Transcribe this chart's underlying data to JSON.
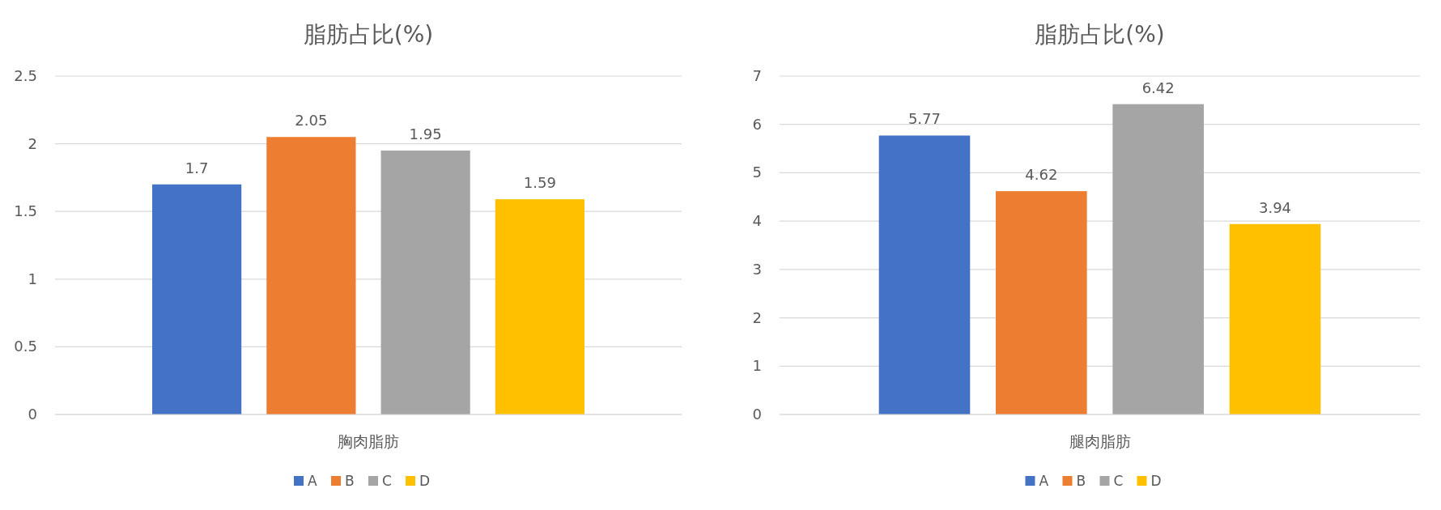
{
  "chart_data": [
    {
      "type": "bar",
      "title": "脂肪占比(%)",
      "categories": [
        "胸肉脂肪"
      ],
      "series": [
        {
          "name": "A",
          "color": "#4472c4",
          "values": [
            1.7
          ]
        },
        {
          "name": "B",
          "color": "#ed7d31",
          "values": [
            2.05
          ]
        },
        {
          "name": "C",
          "color": "#a5a5a5",
          "values": [
            1.95
          ]
        },
        {
          "name": "D",
          "color": "#ffc000",
          "values": [
            1.59
          ]
        }
      ],
      "ylim": [
        0,
        2.5
      ],
      "yticks": [
        0,
        0.5,
        1,
        1.5,
        2,
        2.5
      ],
      "grid": "y",
      "legend": "bottom",
      "data_labels": true
    },
    {
      "type": "bar",
      "title": "脂肪占比(%)",
      "categories": [
        "腿肉脂肪"
      ],
      "series": [
        {
          "name": "A",
          "color": "#4472c4",
          "values": [
            5.77
          ]
        },
        {
          "name": "B",
          "color": "#ed7d31",
          "values": [
            4.62
          ]
        },
        {
          "name": "C",
          "color": "#a5a5a5",
          "values": [
            6.42
          ]
        },
        {
          "name": "D",
          "color": "#ffc000",
          "values": [
            3.94
          ]
        }
      ],
      "ylim": [
        0,
        7
      ],
      "yticks": [
        0,
        1,
        2,
        3,
        4,
        5,
        6,
        7
      ],
      "grid": "y",
      "legend": "bottom",
      "data_labels": true
    }
  ]
}
